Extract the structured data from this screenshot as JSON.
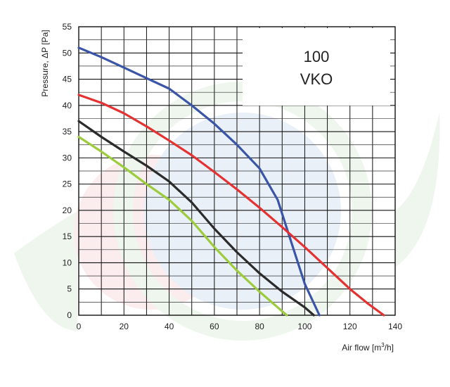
{
  "chart_data": {
    "type": "line",
    "title_lines": [
      "100",
      "VKO"
    ],
    "xlabel": "Air flow [m",
    "xlabel_sup": "3",
    "xlabel_tail": "/h]",
    "ylabel": "Pressure, ΔP [Pa]",
    "xlim": [
      0,
      140
    ],
    "ylim": [
      0,
      55
    ],
    "x_ticks": [
      "0",
      "20",
      "40",
      "60",
      "80",
      "100",
      "120",
      "140"
    ],
    "y_ticks": [
      "0",
      "5",
      "10",
      "15",
      "20",
      "25",
      "30",
      "35",
      "40",
      "45",
      "50",
      "55"
    ],
    "grid": true,
    "series": [
      {
        "color": "#3a55a8",
        "points": [
          [
            0,
            51
          ],
          [
            10,
            49.2
          ],
          [
            20,
            47.2
          ],
          [
            30,
            45.2
          ],
          [
            40,
            43.2
          ],
          [
            50,
            40
          ],
          [
            60,
            36.5
          ],
          [
            70,
            32.5
          ],
          [
            80,
            28
          ],
          [
            88,
            22
          ],
          [
            94,
            14
          ],
          [
            100,
            6
          ],
          [
            106.5,
            0
          ]
        ]
      },
      {
        "color": "#e43232",
        "points": [
          [
            0,
            42
          ],
          [
            10,
            40.5
          ],
          [
            20,
            38.5
          ],
          [
            30,
            36
          ],
          [
            40,
            33.3
          ],
          [
            50,
            30.5
          ],
          [
            60,
            27.3
          ],
          [
            70,
            24
          ],
          [
            80,
            20.5
          ],
          [
            90,
            16.8
          ],
          [
            100,
            13
          ],
          [
            110,
            9
          ],
          [
            120,
            5
          ],
          [
            128,
            2.2
          ],
          [
            135,
            0
          ]
        ]
      },
      {
        "color": "#2b2b2b",
        "points": [
          [
            0,
            37
          ],
          [
            10,
            34
          ],
          [
            20,
            31.2
          ],
          [
            30,
            28.5
          ],
          [
            40,
            25.5
          ],
          [
            50,
            21.5
          ],
          [
            60,
            16.5
          ],
          [
            70,
            12
          ],
          [
            80,
            8
          ],
          [
            90,
            4.5
          ],
          [
            100,
            1.5
          ],
          [
            104,
            0
          ]
        ]
      },
      {
        "color": "#9ccb3b",
        "points": [
          [
            0,
            34
          ],
          [
            10,
            31.2
          ],
          [
            20,
            28.2
          ],
          [
            30,
            25
          ],
          [
            40,
            22
          ],
          [
            50,
            18
          ],
          [
            60,
            13
          ],
          [
            70,
            8.5
          ],
          [
            80,
            4.5
          ],
          [
            88,
            1.5
          ],
          [
            92,
            0
          ]
        ]
      }
    ]
  }
}
